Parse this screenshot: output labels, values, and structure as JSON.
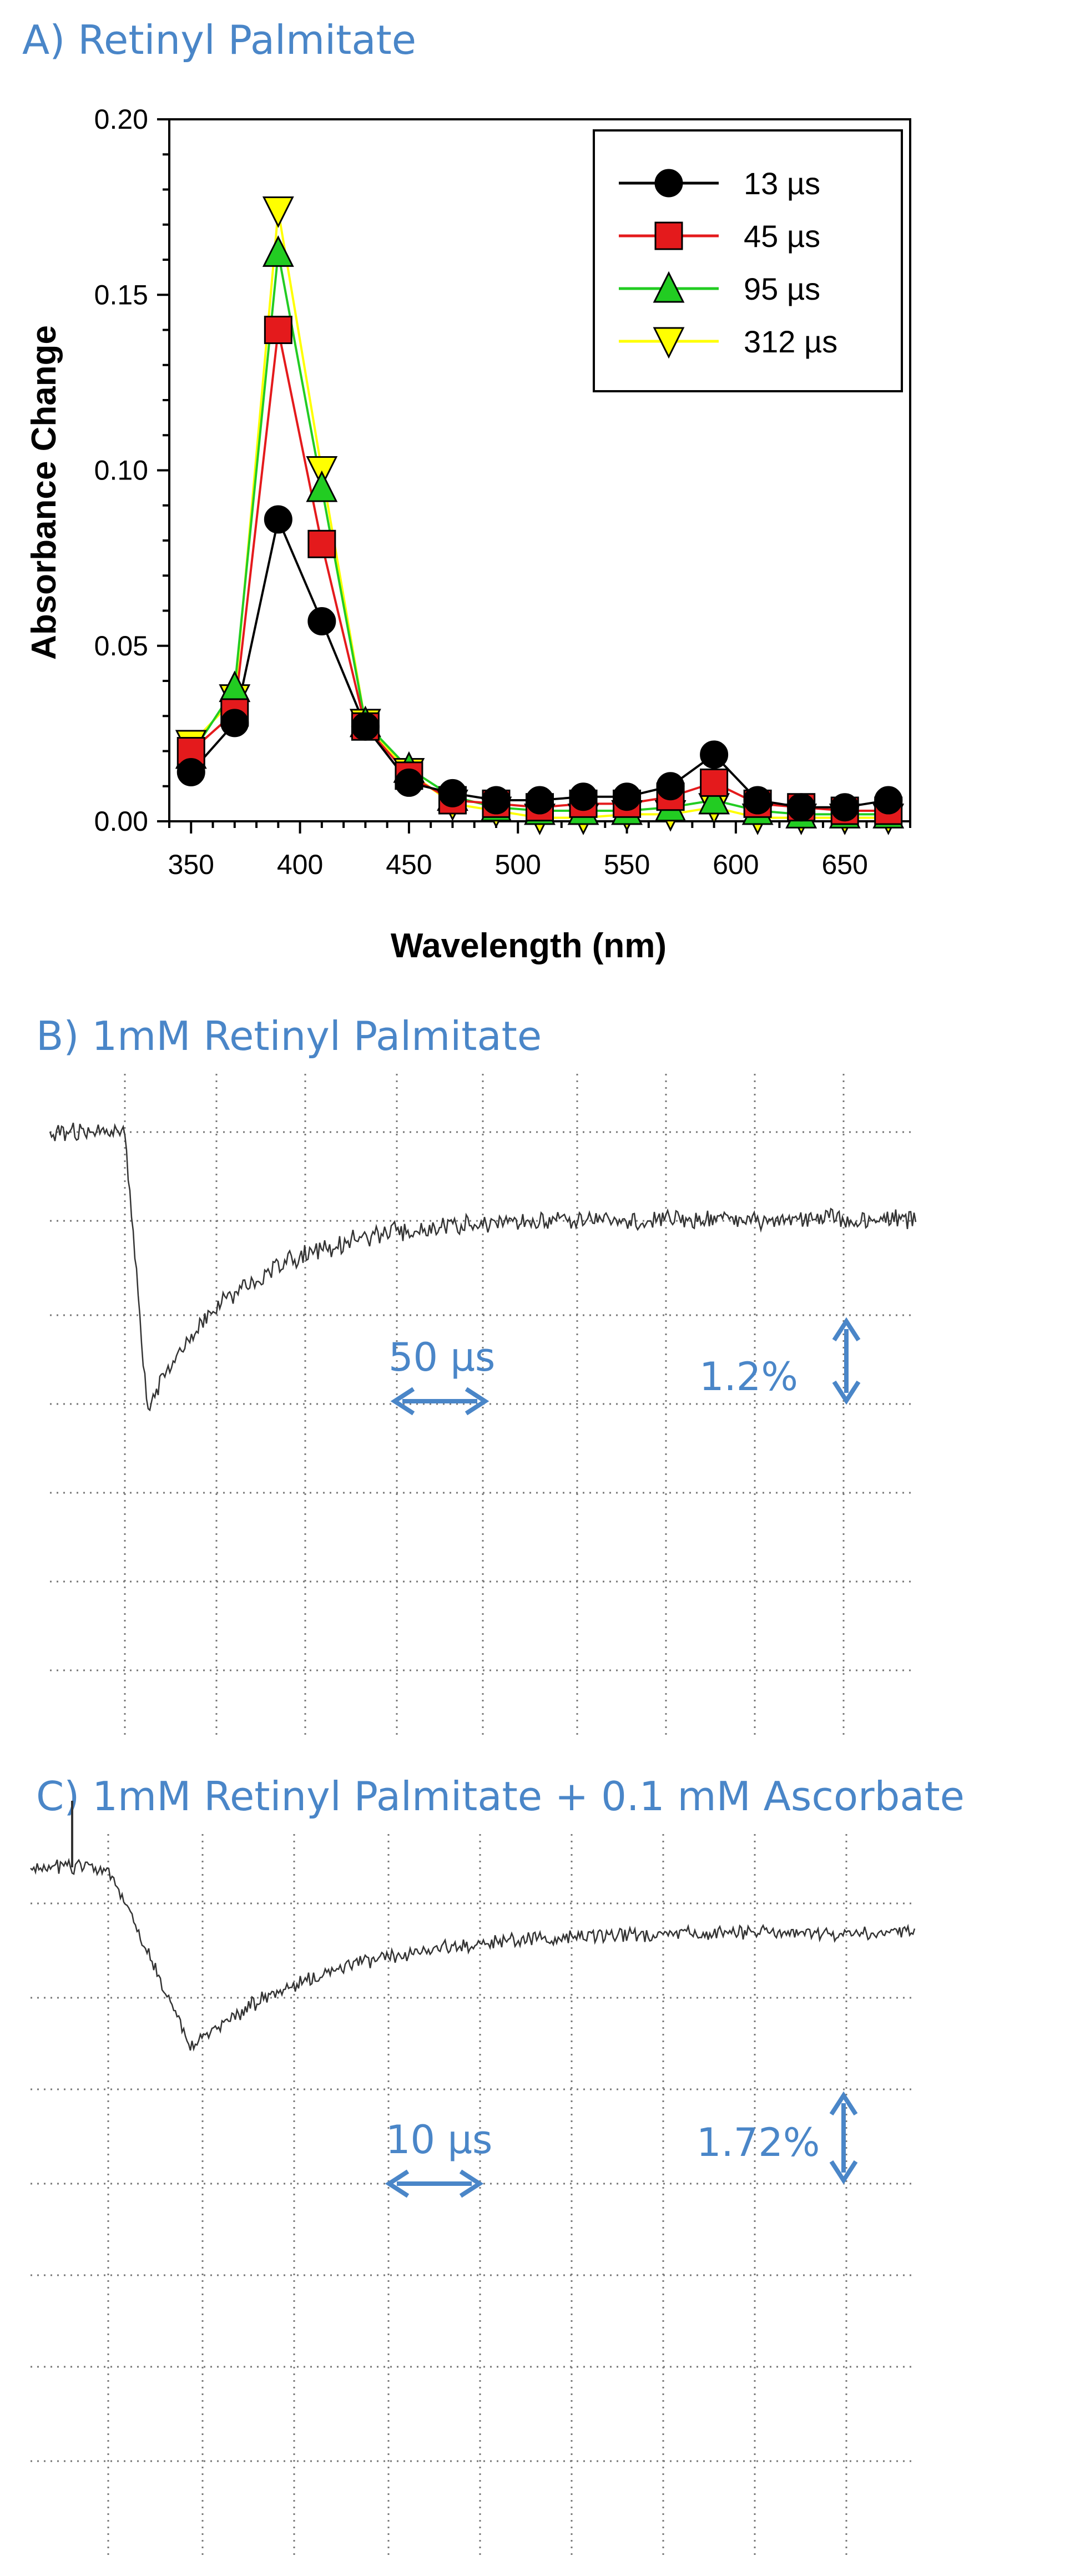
{
  "chart_data": [
    {
      "panel": "A) Retinyl Palmitate",
      "type": "line",
      "xlabel": "Wavelength (nm)",
      "ylabel": "Absorbance Change",
      "xlim": [
        340,
        680
      ],
      "ylim": [
        0,
        0.2
      ],
      "xticks": [
        350,
        400,
        450,
        500,
        550,
        600,
        650
      ],
      "yticks": [
        "0.00",
        "0.05",
        "0.10",
        "0.15",
        "0.20"
      ],
      "legend_position": "top-right",
      "x": [
        350,
        370,
        390,
        410,
        430,
        450,
        470,
        490,
        510,
        530,
        550,
        570,
        590,
        610,
        630,
        650,
        670
      ],
      "series": [
        {
          "name": "13 µs",
          "marker": "circle",
          "color": "#000000",
          "values": [
            0.014,
            0.028,
            0.086,
            0.057,
            0.027,
            0.011,
            0.008,
            0.006,
            0.006,
            0.007,
            0.007,
            0.01,
            0.019,
            0.006,
            0.004,
            0.004,
            0.006
          ]
        },
        {
          "name": "45 µs",
          "marker": "square",
          "color": "#e41a1c",
          "values": [
            0.02,
            0.031,
            0.14,
            0.079,
            0.027,
            0.013,
            0.006,
            0.005,
            0.004,
            0.005,
            0.005,
            0.007,
            0.011,
            0.005,
            0.004,
            0.003,
            0.003
          ]
        },
        {
          "name": "95 µs",
          "marker": "triangle-up",
          "color": "#22cc22",
          "values": [
            0.019,
            0.038,
            0.162,
            0.095,
            0.028,
            0.015,
            0.007,
            0.004,
            0.003,
            0.003,
            0.003,
            0.004,
            0.006,
            0.003,
            0.002,
            0.002,
            0.002
          ]
        },
        {
          "name": "312 µs",
          "marker": "triangle-down",
          "color": "#ffff00",
          "values": [
            0.022,
            0.035,
            0.174,
            0.1,
            0.028,
            0.014,
            0.005,
            0.003,
            0.001,
            0.001,
            0.002,
            0.002,
            0.004,
            0.001,
            0.001,
            0.001,
            0.001
          ]
        }
      ]
    },
    {
      "panel": "B) 1mM Retinyl Palmitate",
      "type": "line",
      "time_scale_label": "50 µs",
      "amplitude_scale_label": "1.2%",
      "grid": true,
      "trace": {
        "baseline": 0.0,
        "minimum": -3.0,
        "end_level": -0.95,
        "recovery_tau_fraction": 0.12
      }
    },
    {
      "panel": "C) 1mM Retinyl Palmitate + 0.1 mM Ascorbate",
      "type": "line",
      "time_scale_label": "10 µs",
      "amplitude_scale_label": "1.72%",
      "grid": true,
      "trace": {
        "baseline": 0.0,
        "minimum": -1.55,
        "end_level": -0.55,
        "recovery_tau_fraction": 0.16
      }
    }
  ]
}
